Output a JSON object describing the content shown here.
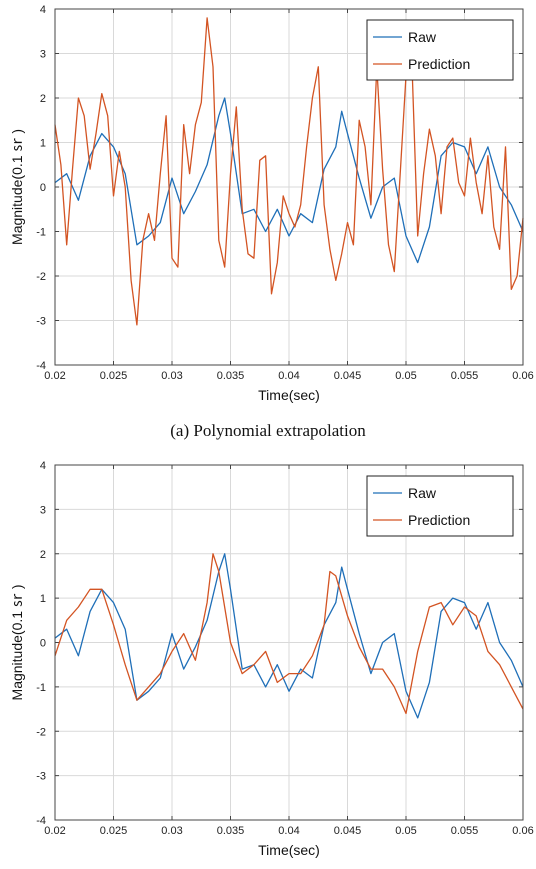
{
  "captions": {
    "a": "(a) Polynomial extrapolation"
  },
  "colors": {
    "raw": "#1f6fb8",
    "prediction": "#d35423",
    "grid": "#d9d9d9",
    "axes": "#444444"
  },
  "chart_data": [
    {
      "type": "line",
      "caption": "(a) Polynomial extrapolation",
      "xlabel": "Time(sec)",
      "ylabel": "Magnitude(0.1 ㏛ )",
      "xlim": [
        0.02,
        0.06
      ],
      "ylim": [
        -4,
        4
      ],
      "xticks": [
        0.02,
        0.025,
        0.03,
        0.035,
        0.04,
        0.045,
        0.05,
        0.055,
        0.06
      ],
      "xticklabels": [
        "0.02",
        "0.025",
        "0.03",
        "0.035",
        "0.04",
        "0.045",
        "0.05",
        "0.055",
        "0.06"
      ],
      "yticks": [
        -4,
        -3,
        -2,
        -1,
        0,
        1,
        2,
        3,
        4
      ],
      "yticklabels": [
        "-4",
        "-3",
        "-2",
        "-1",
        "0",
        "1",
        "2",
        "3",
        "4"
      ],
      "grid": true,
      "legend_position": "top-right",
      "series": [
        {
          "name": "Raw",
          "color": "#1f6fb8",
          "x": [
            0.02,
            0.021,
            0.022,
            0.023,
            0.024,
            0.025,
            0.026,
            0.027,
            0.028,
            0.029,
            0.03,
            0.031,
            0.032,
            0.033,
            0.034,
            0.0345,
            0.035,
            0.036,
            0.037,
            0.038,
            0.039,
            0.04,
            0.041,
            0.042,
            0.043,
            0.044,
            0.0445,
            0.045,
            0.046,
            0.047,
            0.048,
            0.049,
            0.05,
            0.051,
            0.052,
            0.053,
            0.054,
            0.055,
            0.056,
            0.057,
            0.058,
            0.059,
            0.06
          ],
          "y": [
            0.1,
            0.3,
            -0.3,
            0.7,
            1.2,
            0.9,
            0.3,
            -1.3,
            -1.1,
            -0.8,
            0.2,
            -0.6,
            -0.1,
            0.5,
            1.6,
            2.0,
            1.2,
            -0.6,
            -0.5,
            -1.0,
            -0.5,
            -1.1,
            -0.6,
            -0.8,
            0.4,
            0.9,
            1.7,
            1.2,
            0.2,
            -0.7,
            0.0,
            0.2,
            -1.1,
            -1.7,
            -0.9,
            0.7,
            1.0,
            0.9,
            0.3,
            0.9,
            0.0,
            -0.4,
            -1.0
          ]
        },
        {
          "name": "Prediction",
          "color": "#d35423",
          "x": [
            0.02,
            0.0205,
            0.021,
            0.0215,
            0.022,
            0.0225,
            0.023,
            0.0235,
            0.024,
            0.0245,
            0.025,
            0.0255,
            0.026,
            0.0265,
            0.027,
            0.0275,
            0.028,
            0.0285,
            0.029,
            0.0295,
            0.03,
            0.0305,
            0.031,
            0.0315,
            0.032,
            0.0325,
            0.033,
            0.0335,
            0.034,
            0.0345,
            0.035,
            0.0355,
            0.036,
            0.0365,
            0.037,
            0.0375,
            0.038,
            0.0385,
            0.039,
            0.0395,
            0.04,
            0.0405,
            0.041,
            0.0415,
            0.042,
            0.0425,
            0.043,
            0.0435,
            0.044,
            0.0445,
            0.045,
            0.0455,
            0.046,
            0.0465,
            0.047,
            0.0475,
            0.048,
            0.0485,
            0.049,
            0.0495,
            0.05,
            0.0505,
            0.051,
            0.0515,
            0.052,
            0.0525,
            0.053,
            0.0535,
            0.054,
            0.0545,
            0.055,
            0.0555,
            0.056,
            0.0565,
            0.057,
            0.0575,
            0.058,
            0.0585,
            0.059,
            0.0595,
            0.06
          ],
          "y": [
            1.4,
            0.5,
            -1.3,
            0.4,
            2.0,
            1.6,
            0.4,
            1.2,
            2.1,
            1.6,
            -0.2,
            0.8,
            0.0,
            -2.1,
            -3.1,
            -1.2,
            -0.6,
            -1.2,
            0.3,
            1.6,
            -1.6,
            -1.8,
            1.4,
            0.3,
            1.4,
            1.9,
            3.8,
            2.7,
            -1.2,
            -1.8,
            0.3,
            1.8,
            -0.5,
            -1.5,
            -1.6,
            0.6,
            0.7,
            -2.4,
            -1.7,
            -0.2,
            -0.6,
            -0.9,
            -0.4,
            0.9,
            2.0,
            2.7,
            -0.4,
            -1.4,
            -2.1,
            -1.5,
            -0.8,
            -1.3,
            1.5,
            0.9,
            -0.4,
            2.7,
            0.4,
            -1.3,
            -1.9,
            0.3,
            2.5,
            2.8,
            -1.1,
            0.3,
            1.3,
            0.7,
            -0.6,
            0.9,
            1.1,
            0.1,
            -0.2,
            1.1,
            0.1,
            -0.6,
            0.7,
            -0.9,
            -1.4,
            0.9,
            -2.3,
            -2.0,
            -0.7
          ]
        }
      ]
    },
    {
      "type": "line",
      "xlabel": "Time(sec)",
      "ylabel": "Magnitude(0.1 ㏛ )",
      "xlim": [
        0.02,
        0.06
      ],
      "ylim": [
        -4,
        4
      ],
      "xticks": [
        0.02,
        0.025,
        0.03,
        0.035,
        0.04,
        0.045,
        0.05,
        0.055,
        0.06
      ],
      "xticklabels": [
        "0.02",
        "0.025",
        "0.03",
        "0.035",
        "0.04",
        "0.045",
        "0.05",
        "0.055",
        "0.06"
      ],
      "yticks": [
        -4,
        -3,
        -2,
        -1,
        0,
        1,
        2,
        3,
        4
      ],
      "yticklabels": [
        "-4",
        "-3",
        "-2",
        "-1",
        "0",
        "1",
        "2",
        "3",
        "4"
      ],
      "grid": true,
      "legend_position": "top-right",
      "series": [
        {
          "name": "Raw",
          "color": "#1f6fb8",
          "x": [
            0.02,
            0.021,
            0.022,
            0.023,
            0.024,
            0.025,
            0.026,
            0.027,
            0.028,
            0.029,
            0.03,
            0.031,
            0.032,
            0.033,
            0.034,
            0.0345,
            0.035,
            0.036,
            0.037,
            0.038,
            0.039,
            0.04,
            0.041,
            0.042,
            0.043,
            0.044,
            0.0445,
            0.045,
            0.046,
            0.047,
            0.048,
            0.049,
            0.05,
            0.051,
            0.052,
            0.053,
            0.054,
            0.055,
            0.056,
            0.057,
            0.058,
            0.059,
            0.06
          ],
          "y": [
            0.1,
            0.3,
            -0.3,
            0.7,
            1.2,
            0.9,
            0.3,
            -1.3,
            -1.1,
            -0.8,
            0.2,
            -0.6,
            -0.1,
            0.5,
            1.6,
            2.0,
            1.2,
            -0.6,
            -0.5,
            -1.0,
            -0.5,
            -1.1,
            -0.6,
            -0.8,
            0.4,
            0.9,
            1.7,
            1.2,
            0.2,
            -0.7,
            0.0,
            0.2,
            -1.1,
            -1.7,
            -0.9,
            0.7,
            1.0,
            0.9,
            0.3,
            0.9,
            0.0,
            -0.4,
            -1.0
          ]
        },
        {
          "name": "Prediction",
          "color": "#d35423",
          "x": [
            0.02,
            0.021,
            0.022,
            0.023,
            0.024,
            0.025,
            0.026,
            0.027,
            0.028,
            0.029,
            0.03,
            0.031,
            0.032,
            0.033,
            0.0335,
            0.034,
            0.035,
            0.036,
            0.037,
            0.038,
            0.039,
            0.04,
            0.041,
            0.042,
            0.043,
            0.0435,
            0.044,
            0.045,
            0.046,
            0.047,
            0.048,
            0.049,
            0.05,
            0.051,
            0.052,
            0.053,
            0.054,
            0.055,
            0.056,
            0.057,
            0.058,
            0.059,
            0.06
          ],
          "y": [
            -0.3,
            0.5,
            0.8,
            1.2,
            1.2,
            0.4,
            -0.5,
            -1.3,
            -1.0,
            -0.7,
            -0.2,
            0.2,
            -0.4,
            0.9,
            2.0,
            1.6,
            0.0,
            -0.7,
            -0.5,
            -0.2,
            -0.9,
            -0.7,
            -0.7,
            -0.3,
            0.4,
            1.6,
            1.5,
            0.6,
            -0.1,
            -0.6,
            -0.6,
            -1.0,
            -1.6,
            -0.2,
            0.8,
            0.9,
            0.4,
            0.8,
            0.6,
            -0.2,
            -0.5,
            -1.0,
            -1.5
          ]
        }
      ]
    }
  ]
}
